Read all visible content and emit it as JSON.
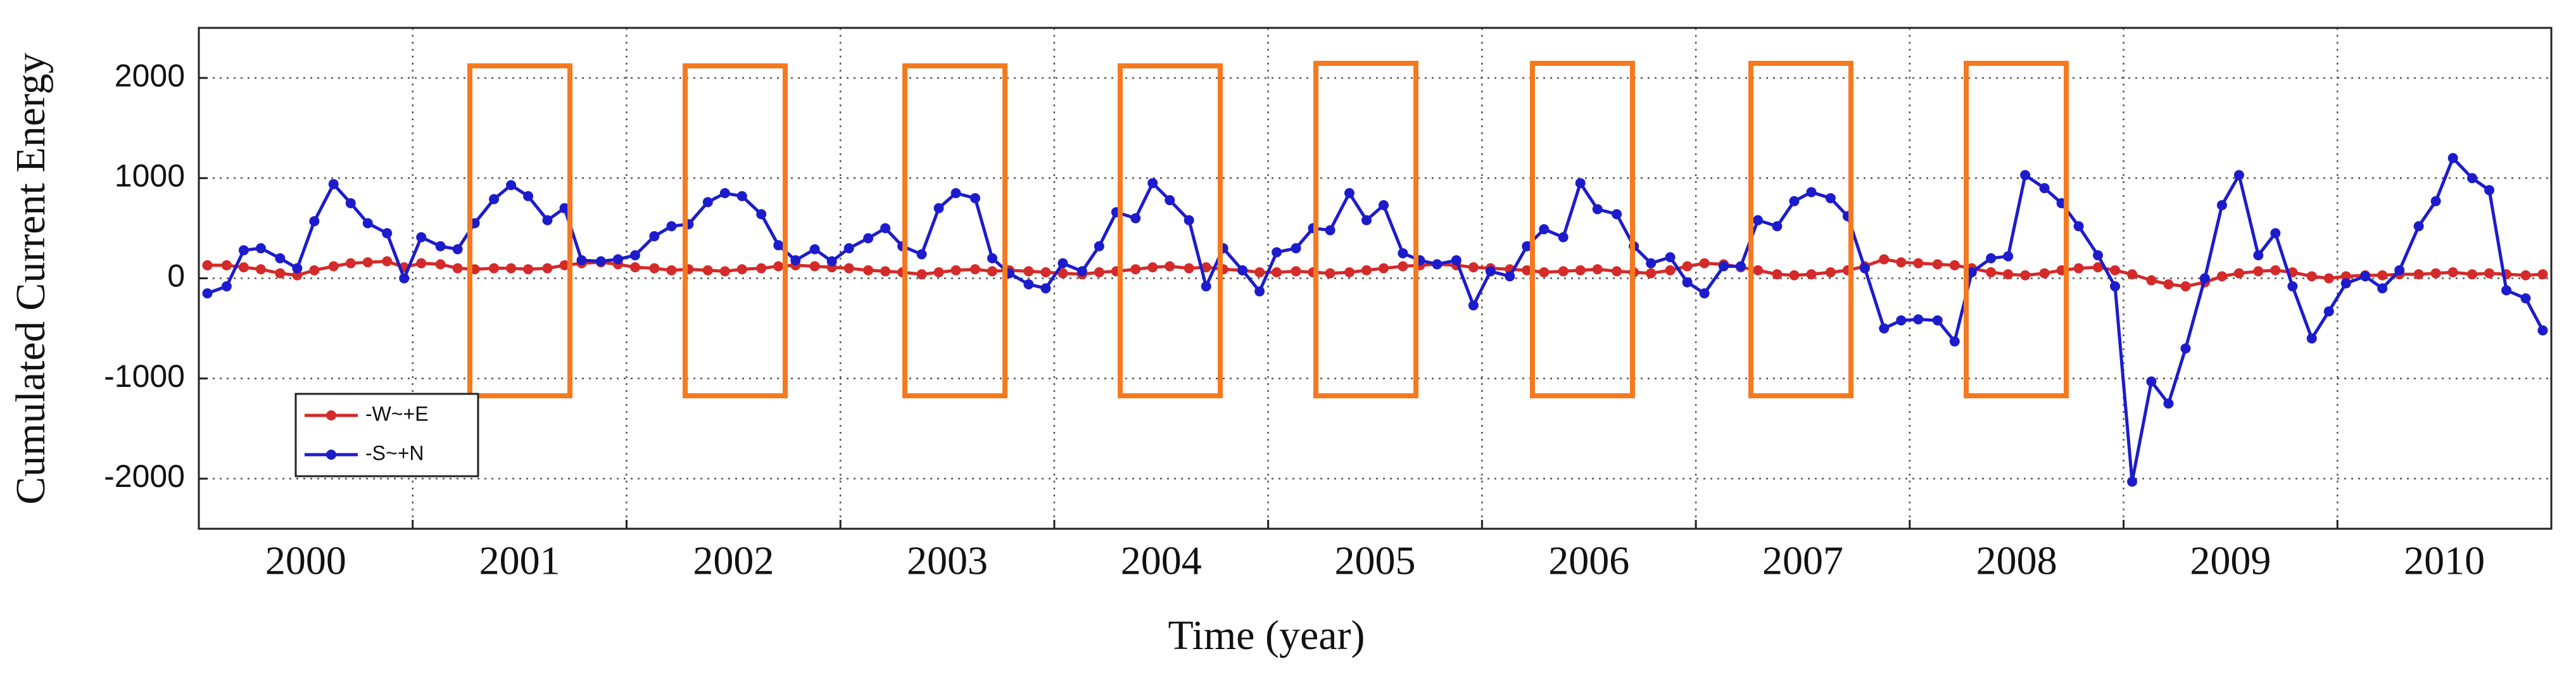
{
  "chart_data": {
    "type": "line",
    "xlabel": "Time (year)",
    "ylabel": "Cumulated Current Energy",
    "x": [
      2000.04,
      2000.13,
      2000.21,
      2000.29,
      2000.38,
      2000.46,
      2000.54,
      2000.63,
      2000.71,
      2000.79,
      2000.88,
      2000.96,
      2001.04,
      2001.13,
      2001.21,
      2001.29,
      2001.38,
      2001.46,
      2001.54,
      2001.63,
      2001.71,
      2001.79,
      2001.88,
      2001.96,
      2002.04,
      2002.13,
      2002.21,
      2002.29,
      2002.38,
      2002.46,
      2002.54,
      2002.63,
      2002.71,
      2002.79,
      2002.88,
      2002.96,
      2003.04,
      2003.13,
      2003.21,
      2003.29,
      2003.38,
      2003.46,
      2003.54,
      2003.63,
      2003.71,
      2003.79,
      2003.88,
      2003.96,
      2004.04,
      2004.13,
      2004.21,
      2004.29,
      2004.38,
      2004.46,
      2004.54,
      2004.63,
      2004.71,
      2004.79,
      2004.88,
      2004.96,
      2005.04,
      2005.13,
      2005.21,
      2005.29,
      2005.38,
      2005.46,
      2005.54,
      2005.63,
      2005.71,
      2005.79,
      2005.88,
      2005.96,
      2006.04,
      2006.13,
      2006.21,
      2006.29,
      2006.38,
      2006.46,
      2006.54,
      2006.63,
      2006.71,
      2006.79,
      2006.88,
      2006.96,
      2007.04,
      2007.13,
      2007.21,
      2007.29,
      2007.38,
      2007.46,
      2007.54,
      2007.63,
      2007.71,
      2007.79,
      2007.88,
      2007.96,
      2008.04,
      2008.13,
      2008.21,
      2008.29,
      2008.38,
      2008.46,
      2008.54,
      2008.63,
      2008.71,
      2008.79,
      2008.88,
      2008.96,
      2009.04,
      2009.13,
      2009.21,
      2009.29,
      2009.38,
      2009.46,
      2009.54,
      2009.63,
      2009.71,
      2009.79,
      2009.88,
      2009.96,
      2010.04,
      2010.13,
      2010.21,
      2010.29,
      2010.38,
      2010.46,
      2010.54,
      2010.63,
      2010.71,
      2010.79,
      2010.88,
      2010.96
    ],
    "series": [
      {
        "name": "-W~+E",
        "color": "#d42a2a",
        "values": [
          130,
          130,
          110,
          90,
          50,
          30,
          80,
          120,
          150,
          160,
          170,
          110,
          150,
          140,
          100,
          90,
          100,
          100,
          90,
          100,
          130,
          150,
          160,
          140,
          110,
          100,
          80,
          90,
          80,
          70,
          90,
          100,
          120,
          130,
          120,
          110,
          100,
          80,
          70,
          60,
          40,
          60,
          80,
          90,
          70,
          80,
          70,
          60,
          50,
          40,
          60,
          70,
          90,
          110,
          120,
          100,
          110,
          90,
          80,
          60,
          60,
          70,
          60,
          50,
          60,
          80,
          100,
          120,
          130,
          140,
          130,
          110,
          100,
          90,
          80,
          60,
          70,
          80,
          90,
          70,
          60,
          50,
          80,
          120,
          150,
          140,
          110,
          80,
          40,
          30,
          40,
          60,
          80,
          120,
          190,
          160,
          150,
          140,
          130,
          100,
          60,
          40,
          30,
          50,
          80,
          100,
          110,
          80,
          40,
          -20,
          -60,
          -80,
          -40,
          20,
          50,
          70,
          80,
          60,
          20,
          0,
          20,
          30,
          30,
          40,
          40,
          50,
          60,
          40,
          50,
          40,
          30,
          40
        ]
      },
      {
        "name": "-S~+N",
        "color": "#1c1ccc",
        "values": [
          -150,
          -80,
          280,
          300,
          200,
          100,
          570,
          940,
          750,
          550,
          450,
          0,
          410,
          320,
          290,
          550,
          790,
          930,
          820,
          580,
          700,
          180,
          170,
          190,
          230,
          420,
          520,
          540,
          760,
          850,
          820,
          640,
          330,
          180,
          290,
          170,
          300,
          400,
          500,
          320,
          240,
          700,
          850,
          800,
          200,
          50,
          -60,
          -100,
          150,
          70,
          320,
          660,
          600,
          950,
          780,
          580,
          -80,
          300,
          80,
          -130,
          260,
          300,
          500,
          480,
          850,
          580,
          730,
          250,
          180,
          140,
          180,
          -270,
          70,
          20,
          320,
          490,
          410,
          950,
          690,
          640,
          320,
          150,
          210,
          -40,
          -150,
          120,
          120,
          580,
          520,
          770,
          860,
          800,
          620,
          100,
          -500,
          -420,
          -410,
          -420,
          -630,
          60,
          200,
          220,
          1030,
          900,
          750,
          520,
          230,
          -80,
          -2030,
          -1030,
          -1250,
          -700,
          0,
          730,
          1030,
          230,
          450,
          -80,
          -600,
          -330,
          -50,
          20,
          -100,
          80,
          520,
          770,
          1200,
          1000,
          880,
          -120,
          -200,
          -520
        ]
      }
    ],
    "xlim": [
      2000,
      2011
    ],
    "xticks": [
      {
        "value": 2000.5,
        "label": "2000"
      },
      {
        "value": 2001.5,
        "label": "2001"
      },
      {
        "value": 2002.5,
        "label": "2002"
      },
      {
        "value": 2003.5,
        "label": "2003"
      },
      {
        "value": 2004.5,
        "label": "2004"
      },
      {
        "value": 2005.5,
        "label": "2005"
      },
      {
        "value": 2006.5,
        "label": "2006"
      },
      {
        "value": 2007.5,
        "label": "2007"
      },
      {
        "value": 2008.5,
        "label": "2008"
      },
      {
        "value": 2009.5,
        "label": "2009"
      },
      {
        "value": 2010.5,
        "label": "2010"
      }
    ],
    "xgrid": [
      2001,
      2002,
      2003,
      2004,
      2005,
      2006,
      2007,
      2008,
      2009,
      2010
    ],
    "ylim": [
      -2500,
      2500
    ],
    "yticks": [
      -2000,
      -1000,
      0,
      1000,
      2000
    ],
    "grid": true,
    "legend": "lower left"
  }
}
